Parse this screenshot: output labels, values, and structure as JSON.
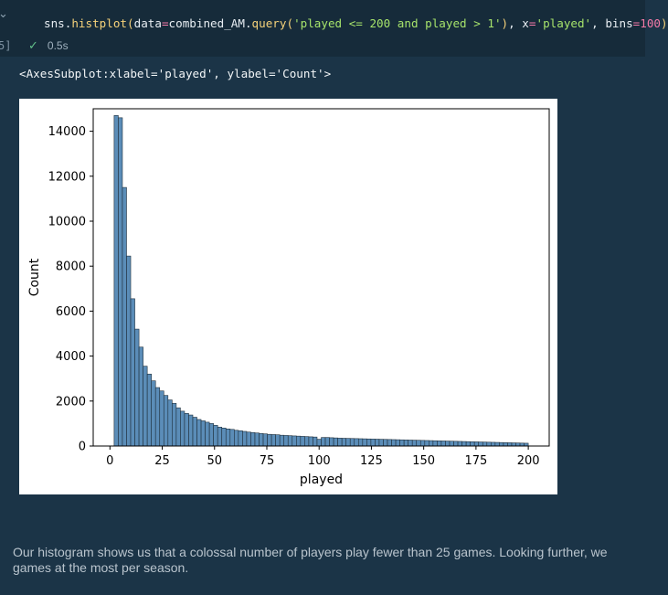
{
  "cell": {
    "execution_count": "5]",
    "code_tokens": [
      {
        "t": "sns",
        "c": ""
      },
      {
        "t": ".",
        "c": ""
      },
      {
        "t": "histplot",
        "c": "fn"
      },
      {
        "t": "(",
        "c": "paren"
      },
      {
        "t": "data",
        "c": ""
      },
      {
        "t": "=",
        "c": "op"
      },
      {
        "t": "combined_AM",
        "c": ""
      },
      {
        "t": ".",
        "c": ""
      },
      {
        "t": "query",
        "c": "fn"
      },
      {
        "t": "(",
        "c": "paren"
      },
      {
        "t": "'played <= 200 and played > 1'",
        "c": "str"
      },
      {
        "t": ")",
        "c": "paren"
      },
      {
        "t": ", ",
        "c": ""
      },
      {
        "t": "x",
        "c": ""
      },
      {
        "t": "=",
        "c": "op"
      },
      {
        "t": "'played'",
        "c": "str"
      },
      {
        "t": ", ",
        "c": ""
      },
      {
        "t": "bins",
        "c": ""
      },
      {
        "t": "=",
        "c": "op"
      },
      {
        "t": "100",
        "c": "num"
      },
      {
        "t": ")",
        "c": "paren"
      }
    ],
    "status_time": "0.5s",
    "output_text": "<AxesSubplot:xlabel='played', ylabel='Count'>"
  },
  "chart_data": {
    "type": "bar",
    "xlabel": "played",
    "ylabel": "Count",
    "xlim": [
      -8,
      210
    ],
    "ylim": [
      0,
      15000
    ],
    "xticks": [
      0,
      25,
      50,
      75,
      100,
      125,
      150,
      175,
      200
    ],
    "yticks": [
      0,
      2000,
      4000,
      6000,
      8000,
      10000,
      12000,
      14000
    ],
    "bin_start": 2,
    "bin_width": 1.98,
    "bar_color": "#5b8db8",
    "edge_color": "#1f2f3c",
    "values": [
      14700,
      14600,
      11500,
      8450,
      6550,
      5200,
      4400,
      3550,
      3200,
      2900,
      2600,
      2450,
      2250,
      2050,
      1900,
      1700,
      1550,
      1450,
      1380,
      1280,
      1180,
      1120,
      1060,
      1000,
      920,
      840,
      800,
      760,
      740,
      700,
      680,
      650,
      620,
      600,
      580,
      560,
      540,
      520,
      510,
      500,
      480,
      470,
      460,
      450,
      440,
      430,
      420,
      410,
      400,
      300,
      380,
      380,
      370,
      360,
      350,
      345,
      340,
      335,
      330,
      325,
      320,
      315,
      310,
      305,
      300,
      295,
      290,
      285,
      280,
      275,
      270,
      265,
      260,
      255,
      250,
      245,
      240,
      235,
      230,
      225,
      220,
      215,
      210,
      205,
      200,
      195,
      190,
      185,
      180,
      175,
      170,
      165,
      160,
      155,
      150,
      145,
      140,
      135,
      130,
      125
    ]
  },
  "markdown": {
    "line1": "Our histogram shows us that a colossal number of players play fewer than 25 games. Looking further, we",
    "line2": "games at the most per season."
  },
  "icons": {
    "collapse": "chevron-down-icon",
    "status": "check-icon"
  }
}
